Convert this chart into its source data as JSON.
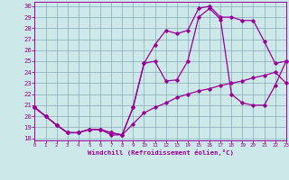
{
  "xlabel": "Windchill (Refroidissement éolien,°C)",
  "xlim": [
    0,
    23
  ],
  "ylim": [
    17.8,
    30.4
  ],
  "xticks": [
    0,
    1,
    2,
    3,
    4,
    5,
    6,
    7,
    8,
    9,
    10,
    11,
    12,
    13,
    14,
    15,
    16,
    17,
    18,
    19,
    20,
    21,
    22,
    23
  ],
  "yticks": [
    18,
    19,
    20,
    21,
    22,
    23,
    24,
    25,
    26,
    27,
    28,
    29,
    30
  ],
  "line_color": "#990099",
  "bg_color": "#cce8e8",
  "grid_color": "#88aabb",
  "line1_x": [
    0,
    1,
    2,
    3,
    4,
    5,
    6,
    7,
    8,
    9,
    10,
    11,
    12,
    13,
    14,
    15,
    16,
    17,
    18,
    19,
    20,
    21,
    22,
    23
  ],
  "line1_y": [
    20.8,
    20.0,
    19.2,
    18.5,
    18.5,
    18.8,
    18.8,
    18.5,
    18.3,
    20.8,
    24.8,
    26.5,
    27.8,
    27.5,
    27.8,
    29.8,
    30.0,
    29.0,
    29.0,
    28.7,
    28.7,
    26.8,
    24.8,
    25.0
  ],
  "line2_x": [
    0,
    1,
    2,
    3,
    4,
    5,
    6,
    7,
    8,
    9,
    10,
    11,
    12,
    13,
    14,
    15,
    16,
    17,
    18,
    19,
    20,
    21,
    22,
    23
  ],
  "line2_y": [
    20.8,
    20.0,
    19.2,
    18.5,
    18.5,
    18.8,
    18.8,
    18.5,
    18.3,
    20.8,
    24.8,
    25.0,
    23.2,
    23.3,
    25.0,
    29.0,
    29.8,
    28.8,
    22.0,
    21.2,
    21.0,
    21.0,
    22.8,
    25.0
  ],
  "line3_x": [
    0,
    1,
    2,
    3,
    4,
    5,
    6,
    7,
    8,
    9,
    10,
    11,
    12,
    13,
    14,
    15,
    16,
    17,
    18,
    19,
    20,
    21,
    22,
    23
  ],
  "line3_y": [
    20.8,
    20.0,
    19.2,
    18.5,
    18.5,
    18.8,
    18.8,
    18.3,
    18.3,
    19.3,
    20.3,
    20.8,
    21.2,
    21.7,
    22.0,
    22.3,
    22.5,
    22.8,
    23.0,
    23.2,
    23.5,
    23.7,
    24.0,
    23.0
  ]
}
